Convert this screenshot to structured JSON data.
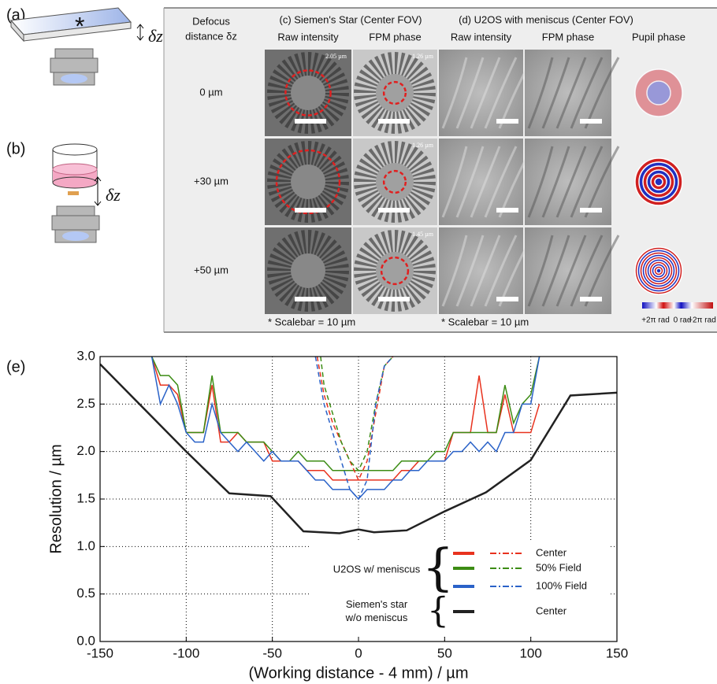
{
  "panel_labels": {
    "a": "(a)",
    "b": "(b)",
    "e": "(e)"
  },
  "defocus_symbol_a": "δz",
  "defocus_symbol_b": "δz",
  "table": {
    "defocus_header": [
      "Defocus",
      "distance δz"
    ],
    "group_headers": [
      "(c) Siemen's Star (Center FOV)",
      "(d) U2OS with meniscus (Center FOV)"
    ],
    "columns": [
      "Raw intensity",
      "FPM phase",
      "Raw intensity",
      "FPM phase",
      "Pupil phase"
    ],
    "rows": [
      "0 µm",
      "+30 µm",
      "+50 µm"
    ],
    "image_annotations": {
      "raw_0um": "2.05 µm",
      "fpm_0um": "1.26 µm",
      "fpm_30um": "1.26 µm",
      "fpm_50um": "1.45 µm"
    },
    "scalebar_notes": [
      "* Scalebar = 10 µm",
      "* Scalebar = 10 µm"
    ],
    "colorbar_labels": [
      "+2π rad",
      "0 rad",
      "−2π rad"
    ]
  },
  "chart_data": {
    "type": "line",
    "x_label": "(Working distance - 4 mm) / µm",
    "y_label": "Resolution / µm",
    "xlim": [
      -150,
      150
    ],
    "ylim": [
      0,
      3
    ],
    "xticks": [
      -150,
      -100,
      -50,
      0,
      50,
      100,
      150
    ],
    "yticks": [
      {
        "value": 0,
        "label": "0.0"
      },
      0.5,
      {
        "value": 1,
        "label": "1.0"
      },
      1.5,
      {
        "value": 2,
        "label": "2.0"
      },
      2.5,
      {
        "value": 3,
        "label": "3.0"
      }
    ],
    "grid": true,
    "legend": [
      {
        "label": [
          "U2OS w/ meniscus"
        ],
        "entries": [
          "Center",
          "50% Field",
          "100% Field"
        ]
      },
      {
        "label": [
          "Siemen's star",
          "w/o meniscus"
        ],
        "entries": [
          "Center"
        ]
      }
    ],
    "series": [
      {
        "color": "#e8321e",
        "style": "solid",
        "x": [
          -120,
          -115,
          -110,
          -105,
          -100,
          -95,
          -90,
          -85,
          -80,
          -75,
          -70,
          -65,
          -60,
          -55,
          -50,
          -45,
          -40,
          -35,
          -30,
          -25,
          -20,
          -15,
          -10,
          -5,
          0,
          5,
          10,
          15,
          20,
          25,
          30,
          35,
          40,
          45,
          50,
          55,
          60,
          65,
          70,
          75,
          80,
          85,
          90,
          95,
          100,
          105
        ],
        "values": [
          3.0,
          2.7,
          2.7,
          2.6,
          2.2,
          2.2,
          2.2,
          2.7,
          2.1,
          2.1,
          2.2,
          2.1,
          2.1,
          2.1,
          1.9,
          1.9,
          1.9,
          1.9,
          1.8,
          1.8,
          1.8,
          1.7,
          1.7,
          1.7,
          1.7,
          1.7,
          1.7,
          1.7,
          1.7,
          1.8,
          1.8,
          1.9,
          1.9,
          1.9,
          1.9,
          2.2,
          2.2,
          2.2,
          2.8,
          2.2,
          2.2,
          2.6,
          2.2,
          2.2,
          2.2,
          2.5
        ]
      },
      {
        "color": "#3c8c14",
        "style": "solid",
        "x": [
          -120,
          -115,
          -110,
          -105,
          -100,
          -95,
          -90,
          -85,
          -80,
          -75,
          -70,
          -65,
          -60,
          -55,
          -50,
          -45,
          -40,
          -35,
          -30,
          -25,
          -20,
          -15,
          -10,
          -5,
          0,
          5,
          10,
          15,
          20,
          25,
          30,
          35,
          40,
          45,
          50,
          55,
          60,
          65,
          70,
          75,
          80,
          85,
          90,
          95,
          100,
          105
        ],
        "values": [
          3.0,
          2.8,
          2.8,
          2.7,
          2.2,
          2.2,
          2.2,
          2.8,
          2.2,
          2.2,
          2.2,
          2.1,
          2.1,
          2.1,
          2.0,
          1.9,
          1.9,
          2.0,
          1.9,
          1.9,
          1.9,
          1.8,
          1.8,
          1.8,
          1.8,
          1.8,
          1.8,
          1.8,
          1.8,
          1.9,
          1.9,
          1.9,
          1.9,
          2.0,
          2.0,
          2.2,
          2.2,
          2.2,
          2.2,
          2.2,
          2.2,
          2.7,
          2.3,
          2.5,
          2.6,
          3.0
        ]
      },
      {
        "color": "#2a62c8",
        "style": "solid",
        "x": [
          -120,
          -115,
          -110,
          -105,
          -100,
          -95,
          -90,
          -85,
          -80,
          -75,
          -70,
          -65,
          -60,
          -55,
          -50,
          -45,
          -40,
          -35,
          -30,
          -25,
          -20,
          -15,
          -10,
          -5,
          0,
          5,
          10,
          15,
          20,
          25,
          30,
          35,
          40,
          45,
          50,
          55,
          60,
          65,
          70,
          75,
          80,
          85,
          90,
          95,
          100,
          105
        ],
        "values": [
          3.0,
          2.5,
          2.7,
          2.5,
          2.2,
          2.1,
          2.1,
          2.5,
          2.2,
          2.1,
          2.0,
          2.1,
          2.0,
          1.9,
          2.0,
          1.9,
          1.9,
          1.9,
          1.8,
          1.7,
          1.7,
          1.6,
          1.6,
          1.6,
          1.5,
          1.6,
          1.6,
          1.6,
          1.7,
          1.7,
          1.8,
          1.8,
          1.9,
          1.9,
          1.9,
          2.0,
          2.0,
          2.1,
          2.0,
          2.1,
          2.0,
          2.2,
          2.2,
          2.5,
          2.5,
          3.0
        ]
      },
      {
        "color": "#e8321e",
        "style": "dashed",
        "x": [
          -24,
          -20,
          -15,
          -10,
          -5,
          0,
          5,
          10,
          15,
          20
        ],
        "values": [
          3.0,
          2.6,
          2.3,
          2.1,
          1.9,
          1.7,
          1.9,
          2.4,
          2.9,
          3.0
        ]
      },
      {
        "color": "#3c8c14",
        "style": "dashed",
        "x": [
          -22,
          -20,
          -15,
          -10,
          -5,
          0,
          5,
          10,
          15,
          20
        ],
        "values": [
          3.0,
          2.7,
          2.4,
          2.1,
          1.9,
          1.8,
          2.0,
          2.5,
          2.9,
          3.0
        ]
      },
      {
        "color": "#2a62c8",
        "style": "dashed",
        "x": [
          -25,
          -20,
          -15,
          -10,
          -5,
          0,
          5,
          10,
          15,
          20
        ],
        "values": [
          3.0,
          2.5,
          2.2,
          1.9,
          1.6,
          1.5,
          1.7,
          2.5,
          2.9,
          3.0
        ]
      },
      {
        "color": "#222222",
        "style": "solid",
        "x": [
          -150,
          -100,
          -75,
          -51,
          -32,
          -11,
          0,
          9,
          28,
          50,
          74,
          100,
          123,
          150
        ],
        "values": [
          2.92,
          2.0,
          1.56,
          1.53,
          1.16,
          1.14,
          1.18,
          1.15,
          1.17,
          1.37,
          1.57,
          1.91,
          2.59,
          2.62
        ]
      }
    ]
  }
}
